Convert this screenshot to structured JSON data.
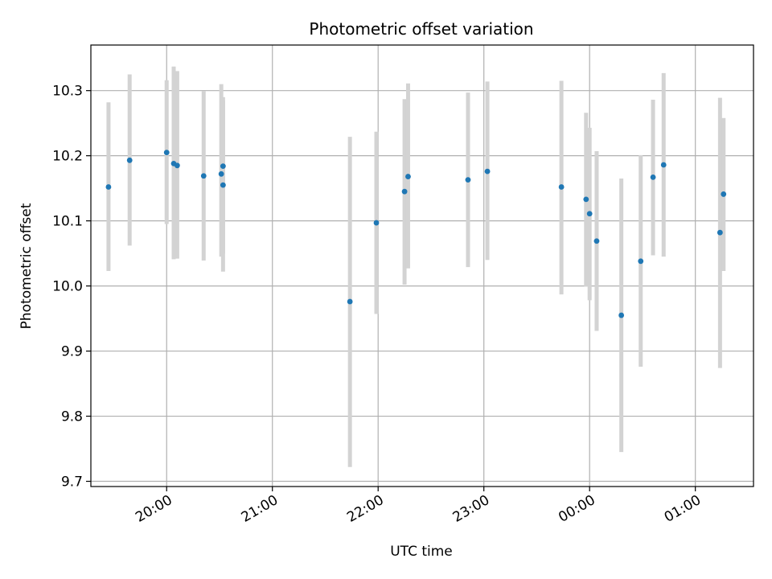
{
  "chart_data": {
    "type": "scatter",
    "title": "Photometric offset variation",
    "xlabel": "UTC time",
    "ylabel": "Photometric offset",
    "grid": true,
    "x_axis_type": "time",
    "x_ticks": [
      "20:00",
      "21:00",
      "22:00",
      "23:00",
      "00:00",
      "01:00"
    ],
    "y_ticks": [
      "9.7",
      "9.8",
      "9.9",
      "10.0",
      "10.1",
      "10.2",
      "10.3"
    ],
    "ylim": [
      9.692,
      10.37
    ],
    "xlim": [
      "19:17",
      "01:33"
    ],
    "series": [
      {
        "marker_color": "#1f77b4",
        "errorbar_color": "#d3d3d3",
        "points": [
          {
            "t": "19:27",
            "y": 10.152,
            "lo": 10.023,
            "hi": 10.282
          },
          {
            "t": "19:39",
            "y": 10.193,
            "lo": 10.062,
            "hi": 10.325
          },
          {
            "t": "20:00",
            "y": 10.205,
            "lo": 10.095,
            "hi": 10.316
          },
          {
            "t": "20:04",
            "y": 10.188,
            "lo": 10.041,
            "hi": 10.337
          },
          {
            "t": "20:06",
            "y": 10.185,
            "lo": 10.042,
            "hi": 10.33
          },
          {
            "t": "20:21",
            "y": 10.169,
            "lo": 10.039,
            "hi": 10.299
          },
          {
            "t": "20:31",
            "y": 10.172,
            "lo": 10.045,
            "hi": 10.31
          },
          {
            "t": "20:32",
            "y": 10.184,
            "lo": 10.05,
            "hi": 10.29
          },
          {
            "t": "20:32",
            "y": 10.155,
            "lo": 10.022,
            "hi": 10.285
          },
          {
            "t": "21:44",
            "y": 9.976,
            "lo": 9.722,
            "hi": 10.229
          },
          {
            "t": "21:59",
            "y": 10.097,
            "lo": 9.957,
            "hi": 10.237
          },
          {
            "t": "22:15",
            "y": 10.145,
            "lo": 10.002,
            "hi": 10.287
          },
          {
            "t": "22:17",
            "y": 10.168,
            "lo": 10.027,
            "hi": 10.311
          },
          {
            "t": "22:51",
            "y": 10.163,
            "lo": 10.029,
            "hi": 10.297
          },
          {
            "t": "23:02",
            "y": 10.176,
            "lo": 10.04,
            "hi": 10.314
          },
          {
            "t": "23:44",
            "y": 10.152,
            "lo": 9.987,
            "hi": 10.315
          },
          {
            "t": "23:58",
            "y": 10.133,
            "lo": 9.999,
            "hi": 10.266
          },
          {
            "t": "00:00",
            "y": 10.111,
            "lo": 9.978,
            "hi": 10.243
          },
          {
            "t": "00:04",
            "y": 10.069,
            "lo": 9.931,
            "hi": 10.207
          },
          {
            "t": "00:18",
            "y": 9.955,
            "lo": 9.745,
            "hi": 10.165
          },
          {
            "t": "00:29",
            "y": 10.038,
            "lo": 9.876,
            "hi": 10.201
          },
          {
            "t": "00:36",
            "y": 10.167,
            "lo": 10.047,
            "hi": 10.286
          },
          {
            "t": "00:42",
            "y": 10.186,
            "lo": 10.045,
            "hi": 10.327
          },
          {
            "t": "01:14",
            "y": 10.082,
            "lo": 9.874,
            "hi": 10.289
          },
          {
            "t": "01:16",
            "y": 10.141,
            "lo": 10.023,
            "hi": 10.258
          }
        ]
      }
    ]
  }
}
